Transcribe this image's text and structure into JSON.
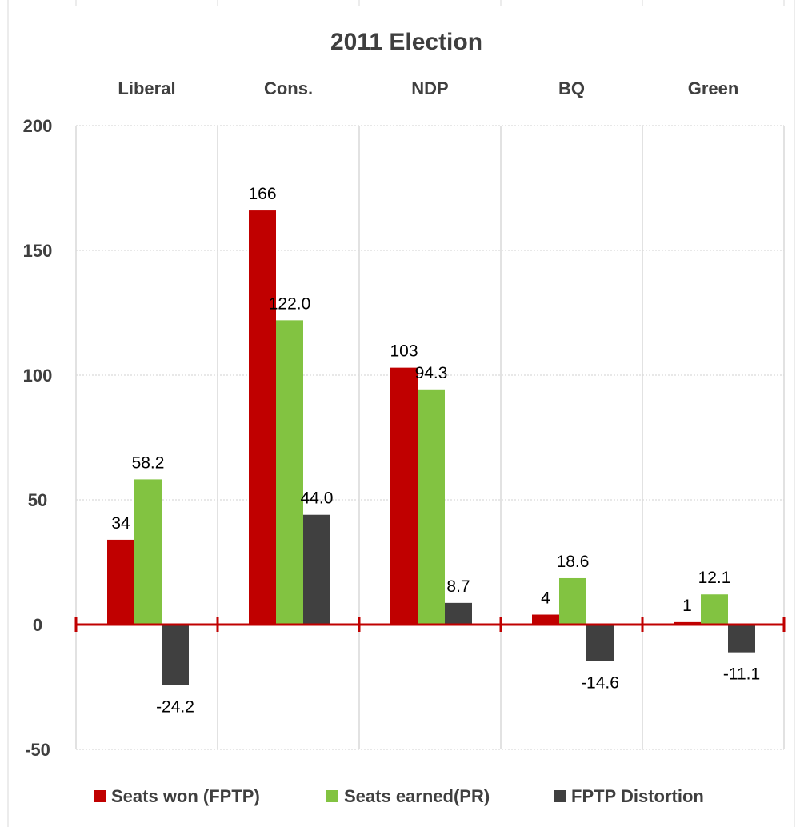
{
  "chart_data": {
    "type": "bar",
    "title": "2011 Election",
    "categories": [
      "Liberal",
      "Cons.",
      "NDP",
      "BQ",
      "Green"
    ],
    "series": [
      {
        "name": "Seats won (FPTP)",
        "color": "#c00000",
        "values": [
          34,
          166,
          103,
          4,
          1
        ],
        "labels": [
          "34",
          "166",
          "103",
          "4",
          "1"
        ]
      },
      {
        "name": "Seats earned(PR)",
        "color": "#82c341",
        "values": [
          58.2,
          122.0,
          94.3,
          18.6,
          12.1
        ],
        "labels": [
          "58.2",
          "122.0",
          "94.3",
          "18.6",
          "12.1"
        ]
      },
      {
        "name": "FPTP Distortion",
        "color": "#404040",
        "values": [
          -24.2,
          44.0,
          8.7,
          -14.6,
          -11.1
        ],
        "labels": [
          "-24.2",
          "44.0",
          "8.7",
          "-14.6",
          "-11.1"
        ]
      }
    ],
    "ylim": [
      -50,
      200
    ],
    "yticks": [
      200,
      150,
      100,
      50,
      0,
      -50
    ],
    "ytick_labels": [
      "200",
      "150",
      "100",
      "50",
      "0",
      "-50"
    ],
    "xlabel": "",
    "ylabel": "",
    "grid": true,
    "legend_position": "bottom",
    "zero_line_color": "#c00000"
  }
}
